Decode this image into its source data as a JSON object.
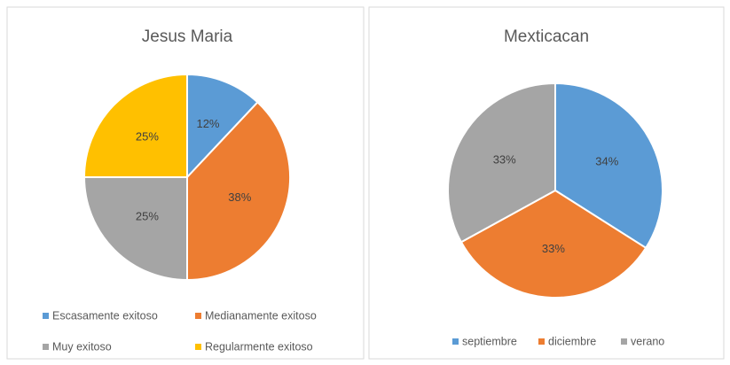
{
  "chart_data": [
    {
      "type": "pie",
      "title": "Jesus Maria",
      "categories": [
        "Escasamente exitoso",
        "Medianamente exitoso",
        "Muy exitoso",
        "Regularmente exitoso"
      ],
      "values": [
        12,
        38,
        25,
        25
      ],
      "value_labels": [
        "12%",
        "38%",
        "25%",
        "25%"
      ],
      "colors": [
        "#5b9bd5",
        "#ed7d31",
        "#a5a5a5",
        "#ffc000"
      ],
      "legend": "bottom"
    },
    {
      "type": "pie",
      "title": "Mexticacan",
      "categories": [
        "septiembre",
        "diciembre",
        "verano"
      ],
      "values": [
        34,
        33,
        33
      ],
      "value_labels": [
        "34%",
        "33%",
        "33%"
      ],
      "colors": [
        "#5b9bd5",
        "#ed7d31",
        "#a5a5a5"
      ],
      "legend": "bottom"
    }
  ]
}
